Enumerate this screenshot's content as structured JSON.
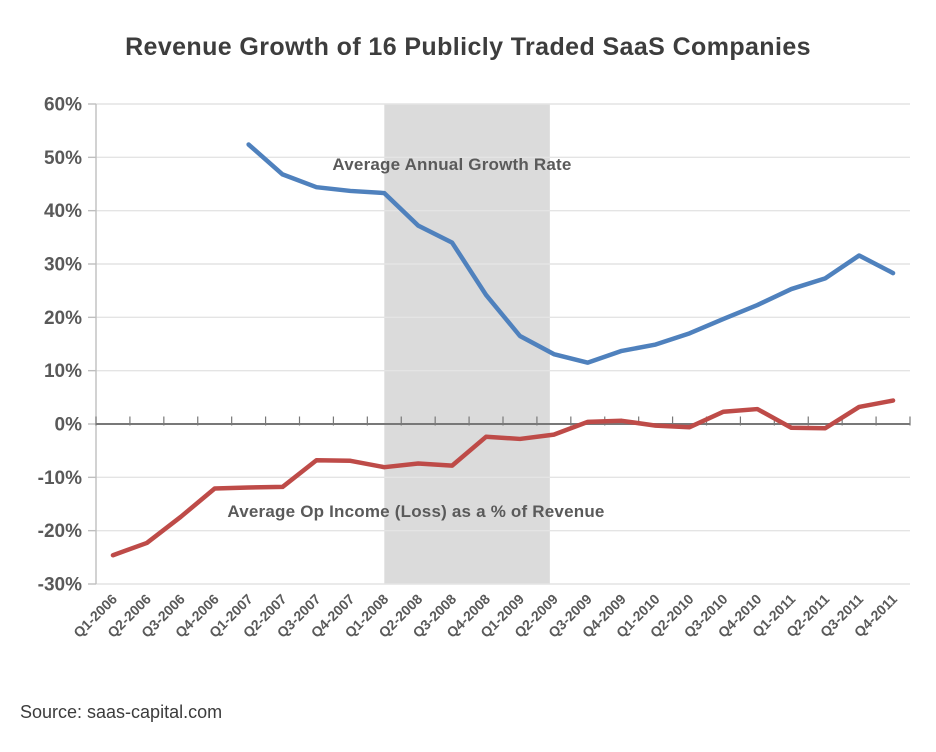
{
  "page": {
    "title": "Revenue Growth of 16 Publicly Traded SaaS Companies",
    "source": "Source: saas-capital.com"
  },
  "colors": {
    "growth_line": "#4f81bd",
    "op_income_line": "#be4b48",
    "recession_band": "#dbdbdb",
    "gridline": "#e4e4e4",
    "y_axis_line": "#bfbfbf",
    "zero_axis": "#787878",
    "axis_text": "#595959",
    "title_text": "#3d3d3d"
  },
  "chart_data": {
    "type": "line",
    "title": "Revenue Growth of 16 Publicly Traded SaaS Companies",
    "categories": [
      "Q1-2006",
      "Q2-2006",
      "Q3-2006",
      "Q4-2006",
      "Q1-2007",
      "Q2-2007",
      "Q3-2007",
      "Q4-2007",
      "Q1-2008",
      "Q2-2008",
      "Q3-2008",
      "Q4-2008",
      "Q1-2009",
      "Q2-2009",
      "Q3-2009",
      "Q4-2009",
      "Q1-2010",
      "Q2-2010",
      "Q3-2010",
      "Q4-2010",
      "Q1-2011",
      "Q2-2011",
      "Q3-2011",
      "Q4-2011"
    ],
    "series": [
      {
        "name": "Average Annual Growth Rate",
        "color": "#4f81bd",
        "values": [
          null,
          null,
          null,
          null,
          52.4,
          46.8,
          44.4,
          43.7,
          43.3,
          37.2,
          34.0,
          24.2,
          16.5,
          13.1,
          11.5,
          13.7,
          14.9,
          17.0,
          19.7,
          22.3,
          25.3,
          27.3,
          31.6,
          28.3
        ]
      },
      {
        "name": "Average Op Income (Loss) as a % of Revenue",
        "color": "#be4b48",
        "values": [
          -24.6,
          -22.3,
          -17.4,
          -12.1,
          -11.9,
          -11.8,
          -6.8,
          -6.9,
          -8.1,
          -7.4,
          -7.8,
          -2.4,
          -2.8,
          -2.0,
          0.4,
          0.6,
          -0.3,
          -0.6,
          2.3,
          2.8,
          -0.7,
          -0.8,
          3.2,
          4.4
        ]
      }
    ],
    "annotations": [
      {
        "text": "Average Annual Growth Rate"
      },
      {
        "text": "Average Op Income (Loss) as a % of Revenue"
      }
    ],
    "shaded_region": {
      "from": "Q1-2008",
      "to": "Q2-2009"
    },
    "ylim": [
      -30,
      60
    ],
    "ytick_step": 10,
    "ytick_suffix": "%",
    "grid": "horizontal",
    "legend_position": "none"
  }
}
